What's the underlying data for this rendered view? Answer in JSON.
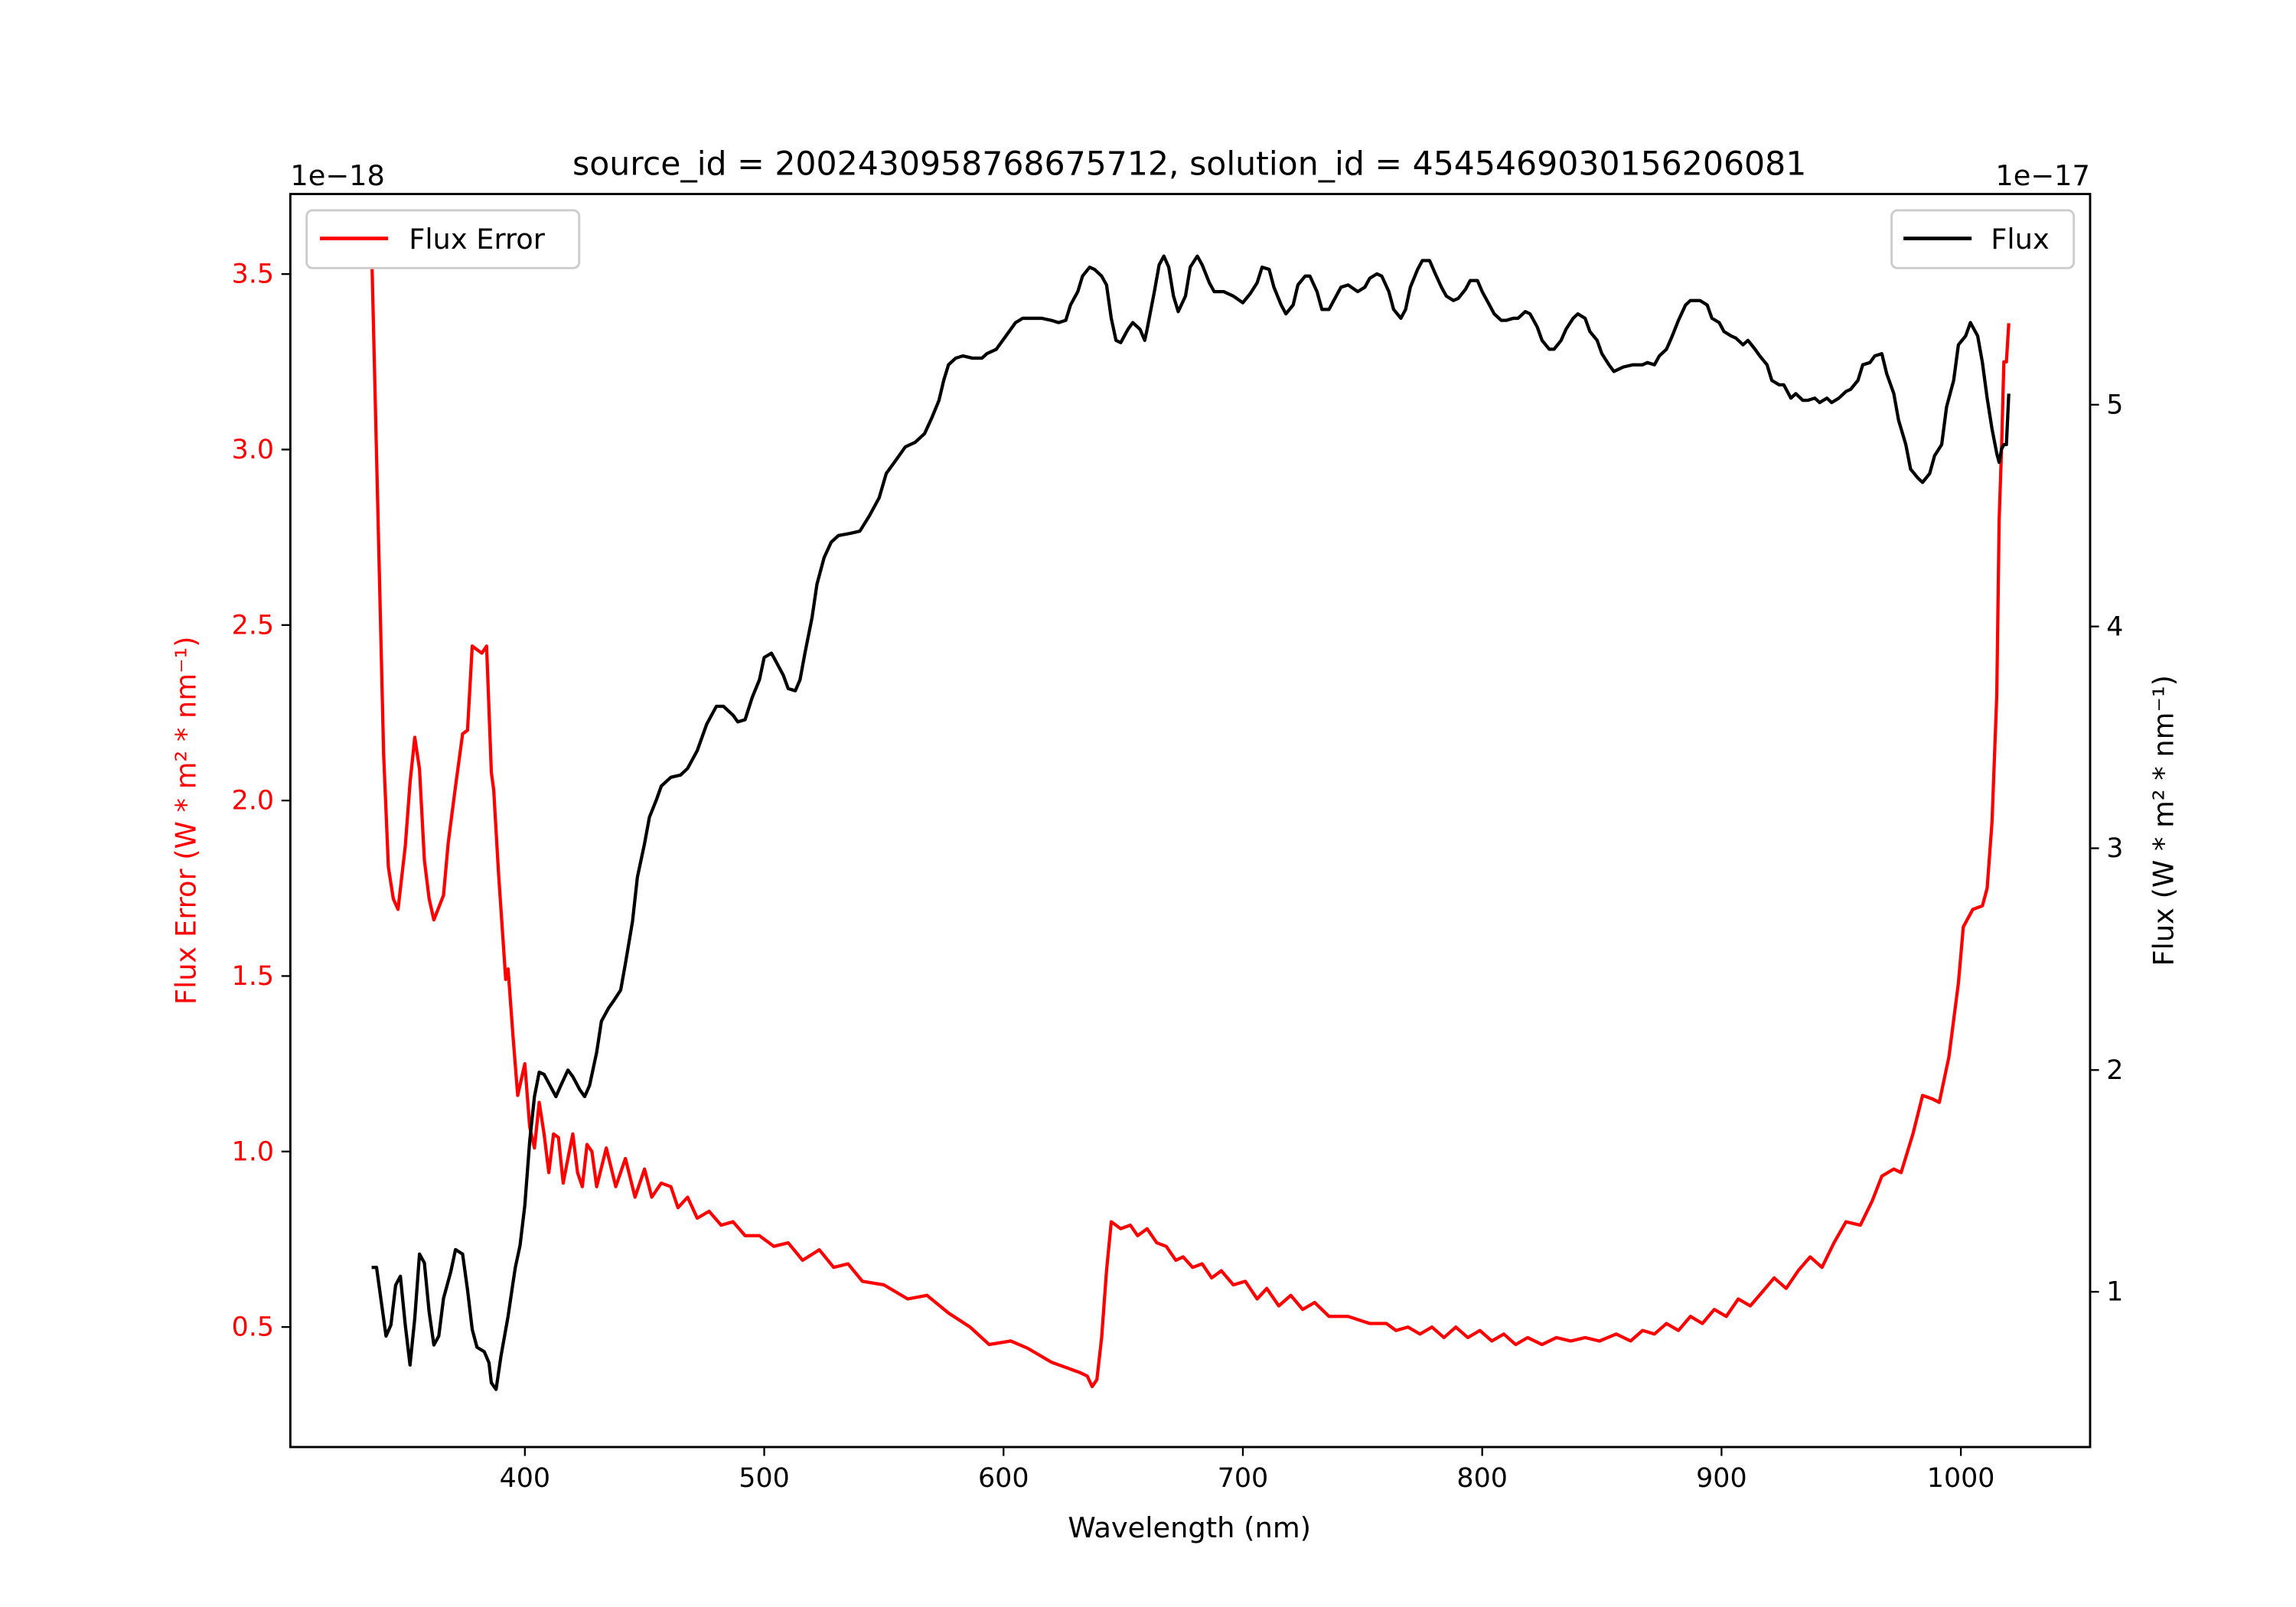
{
  "chart_data": {
    "type": "line",
    "title": "source_id = 2002430958768675712, solution_id = 4545469030156206081",
    "xlabel": "Wavelength (nm)",
    "ylabel_left": "Flux Error (W * m² * nm⁻¹)",
    "ylabel_right": "Flux (W * m² * nm⁻¹)",
    "left_offset_text": "1e−18",
    "right_offset_text": "1e−17",
    "xlim": [
      302,
      1054
    ],
    "ylim_left": [
      0.158,
      3.728
    ],
    "ylim_right": [
      0.3,
      5.95
    ],
    "xticks": [
      400,
      500,
      600,
      700,
      800,
      900,
      1000
    ],
    "xtick_labels": [
      "400",
      "500",
      "600",
      "700",
      "800",
      "900",
      "1000"
    ],
    "yticks_left": [
      0.5,
      1.0,
      1.5,
      2.0,
      2.5,
      3.0,
      3.5
    ],
    "ytick_labels_left": [
      "0.5",
      "1.0",
      "1.5",
      "2.0",
      "2.5",
      "3.0",
      "3.5"
    ],
    "yticks_right": [
      1,
      2,
      3,
      4,
      5
    ],
    "ytick_labels_right": [
      "1",
      "2",
      "3",
      "4",
      "5"
    ],
    "grid": false,
    "series": [
      {
        "name": "Flux Error",
        "axis": "left",
        "color": "#ff0000",
        "legend": "top-left",
        "x": [
          336,
          339,
          341,
          343,
          345,
          347,
          350,
          352,
          354,
          356,
          358,
          360,
          362,
          366,
          368,
          371,
          374,
          376,
          378,
          380,
          382,
          384,
          386,
          387,
          389,
          392,
          393,
          395,
          397,
          400,
          402,
          404,
          406,
          408,
          410,
          412,
          414,
          416,
          418,
          420,
          422,
          424,
          426,
          428,
          430,
          434,
          438,
          442,
          446,
          450,
          453,
          457,
          461,
          464,
          468,
          472,
          477,
          482,
          487,
          492,
          498,
          504,
          510,
          516,
          523,
          529,
          535,
          541,
          550,
          560,
          568,
          577,
          586,
          594,
          603,
          610,
          620,
          632,
          635,
          637,
          639,
          641,
          643,
          645,
          649,
          653,
          656,
          660,
          664,
          668,
          672,
          675,
          679,
          683,
          687,
          691,
          696,
          701,
          706,
          710,
          715,
          720,
          725,
          730,
          736,
          744,
          753,
          760,
          764,
          769,
          774,
          779,
          784,
          789,
          794,
          799,
          804,
          809,
          814,
          819,
          825,
          831,
          837,
          843,
          849,
          856,
          862,
          867,
          872,
          877,
          882,
          887,
          892,
          897,
          902,
          907,
          912,
          917,
          922,
          927,
          932,
          937,
          942,
          947,
          952,
          958,
          963,
          967,
          972,
          975,
          980,
          984,
          988,
          991,
          995,
          999,
          1001,
          1005,
          1009,
          1011,
          1013,
          1015,
          1016,
          1017,
          1018,
          1019,
          1020
        ],
        "y": [
          3.57,
          2.7,
          2.13,
          1.81,
          1.72,
          1.69,
          1.87,
          2.05,
          2.18,
          2.09,
          1.83,
          1.72,
          1.66,
          1.73,
          1.88,
          2.04,
          2.19,
          2.2,
          2.44,
          2.43,
          2.42,
          2.44,
          2.08,
          2.03,
          1.79,
          1.49,
          1.52,
          1.33,
          1.16,
          1.25,
          1.07,
          1.01,
          1.14,
          1.05,
          0.94,
          1.05,
          1.04,
          0.91,
          0.98,
          1.05,
          0.94,
          0.9,
          1.02,
          1.0,
          0.9,
          1.01,
          0.9,
          0.98,
          0.87,
          0.95,
          0.87,
          0.91,
          0.9,
          0.84,
          0.87,
          0.81,
          0.83,
          0.79,
          0.8,
          0.76,
          0.76,
          0.73,
          0.74,
          0.69,
          0.72,
          0.67,
          0.68,
          0.63,
          0.62,
          0.58,
          0.59,
          0.54,
          0.5,
          0.45,
          0.46,
          0.44,
          0.4,
          0.37,
          0.36,
          0.33,
          0.35,
          0.47,
          0.66,
          0.8,
          0.78,
          0.79,
          0.76,
          0.78,
          0.74,
          0.73,
          0.69,
          0.7,
          0.67,
          0.68,
          0.64,
          0.66,
          0.62,
          0.63,
          0.58,
          0.61,
          0.56,
          0.59,
          0.55,
          0.57,
          0.53,
          0.53,
          0.51,
          0.51,
          0.49,
          0.5,
          0.48,
          0.5,
          0.47,
          0.5,
          0.47,
          0.49,
          0.46,
          0.48,
          0.45,
          0.47,
          0.45,
          0.47,
          0.46,
          0.47,
          0.46,
          0.48,
          0.46,
          0.49,
          0.48,
          0.51,
          0.49,
          0.53,
          0.51,
          0.55,
          0.53,
          0.58,
          0.56,
          0.6,
          0.64,
          0.61,
          0.66,
          0.7,
          0.67,
          0.74,
          0.8,
          0.79,
          0.86,
          0.93,
          0.95,
          0.94,
          1.05,
          1.16,
          1.15,
          1.14,
          1.27,
          1.48,
          1.64,
          1.69,
          1.7,
          1.75,
          1.94,
          2.3,
          2.8,
          3.0,
          3.25,
          3.25,
          3.36
        ]
      },
      {
        "name": "Flux",
        "axis": "right",
        "color": "#000000",
        "legend": "top-right",
        "x": [
          336,
          338,
          342,
          344,
          346,
          348,
          350,
          352,
          354,
          356,
          358,
          360,
          362,
          364,
          366,
          369,
          371,
          374,
          376,
          378,
          380,
          383,
          385,
          386,
          388,
          390,
          393,
          395,
          396,
          398,
          400,
          402,
          404,
          406,
          408,
          411,
          413,
          415,
          418,
          420,
          423,
          425,
          427,
          430,
          432,
          435,
          437,
          440,
          442,
          445,
          447,
          450,
          452,
          455,
          457,
          461,
          465,
          468,
          472,
          476,
          480,
          483,
          487,
          489,
          492,
          495,
          498,
          500,
          503,
          505,
          508,
          510,
          513,
          515,
          517,
          520,
          522,
          525,
          528,
          531,
          536,
          540,
          544,
          548,
          551,
          555,
          559,
          563,
          567,
          570,
          573,
          575,
          577,
          580,
          583,
          587,
          591,
          593,
          597,
          601,
          605,
          608,
          612,
          616,
          620,
          623,
          626,
          628,
          631,
          633,
          636,
          638,
          641,
          643,
          645,
          647,
          649,
          652,
          654,
          657,
          659,
          660,
          663,
          665,
          667,
          669,
          671,
          673,
          676,
          678,
          681,
          683,
          686,
          688,
          692,
          696,
          700,
          703,
          706,
          708,
          711,
          713,
          716,
          718,
          721,
          723,
          726,
          728,
          731,
          733,
          736,
          738,
          741,
          744,
          748,
          751,
          753,
          756,
          758,
          761,
          763,
          766,
          768,
          770,
          773,
          775,
          778,
          780,
          783,
          785,
          788,
          790,
          793,
          795,
          798,
          800,
          803,
          805,
          808,
          810,
          813,
          815,
          818,
          820,
          823,
          825,
          828,
          830,
          833,
          835,
          838,
          840,
          843,
          845,
          848,
          850,
          853,
          855,
          859,
          863,
          867,
          869,
          872,
          874,
          877,
          879,
          882,
          885,
          887,
          891,
          894,
          896,
          899,
          901,
          904,
          906,
          909,
          911,
          914,
          916,
          919,
          921,
          924,
          926,
          929,
          931,
          934,
          936,
          939,
          941,
          944,
          946,
          949,
          952,
          954,
          957,
          959,
          962,
          964,
          967,
          969,
          972,
          974,
          977,
          979,
          982,
          984,
          987,
          989,
          992,
          994,
          997,
          999,
          1002,
          1004,
          1007,
          1009,
          1011,
          1013,
          1015,
          1016,
          1017,
          1018,
          1019,
          1020
        ],
        "y": [
          1.11,
          1.11,
          0.8,
          0.85,
          1.03,
          1.07,
          0.85,
          0.67,
          0.88,
          1.17,
          1.13,
          0.91,
          0.76,
          0.8,
          0.97,
          1.09,
          1.19,
          1.17,
          1.01,
          0.83,
          0.75,
          0.73,
          0.68,
          0.59,
          0.56,
          0.71,
          0.89,
          1.04,
          1.11,
          1.21,
          1.39,
          1.68,
          1.88,
          1.99,
          1.98,
          1.92,
          1.88,
          1.93,
          2.0,
          1.97,
          1.91,
          1.88,
          1.93,
          2.08,
          2.22,
          2.28,
          2.31,
          2.36,
          2.48,
          2.67,
          2.87,
          3.02,
          3.14,
          3.22,
          3.28,
          3.32,
          3.33,
          3.36,
          3.44,
          3.56,
          3.64,
          3.64,
          3.6,
          3.57,
          3.58,
          3.68,
          3.76,
          3.86,
          3.88,
          3.84,
          3.78,
          3.72,
          3.71,
          3.76,
          3.88,
          4.04,
          4.19,
          4.31,
          4.38,
          4.41,
          4.42,
          4.43,
          4.5,
          4.58,
          4.69,
          4.75,
          4.81,
          4.83,
          4.87,
          4.94,
          5.02,
          5.11,
          5.18,
          5.21,
          5.22,
          5.21,
          5.21,
          5.23,
          5.25,
          5.31,
          5.37,
          5.39,
          5.39,
          5.39,
          5.38,
          5.37,
          5.38,
          5.45,
          5.51,
          5.58,
          5.62,
          5.61,
          5.58,
          5.54,
          5.39,
          5.29,
          5.28,
          5.34,
          5.37,
          5.34,
          5.29,
          5.34,
          5.51,
          5.63,
          5.67,
          5.62,
          5.49,
          5.42,
          5.49,
          5.62,
          5.67,
          5.63,
          5.55,
          5.51,
          5.51,
          5.49,
          5.46,
          5.5,
          5.55,
          5.62,
          5.61,
          5.53,
          5.45,
          5.41,
          5.45,
          5.54,
          5.58,
          5.58,
          5.51,
          5.43,
          5.43,
          5.47,
          5.53,
          5.54,
          5.51,
          5.53,
          5.57,
          5.59,
          5.58,
          5.51,
          5.43,
          5.39,
          5.43,
          5.53,
          5.61,
          5.65,
          5.65,
          5.6,
          5.53,
          5.49,
          5.47,
          5.48,
          5.52,
          5.56,
          5.56,
          5.51,
          5.45,
          5.41,
          5.38,
          5.38,
          5.39,
          5.39,
          5.42,
          5.41,
          5.35,
          5.29,
          5.25,
          5.25,
          5.29,
          5.34,
          5.39,
          5.41,
          5.39,
          5.33,
          5.29,
          5.23,
          5.18,
          5.15,
          5.17,
          5.18,
          5.18,
          5.19,
          5.18,
          5.22,
          5.25,
          5.3,
          5.38,
          5.45,
          5.47,
          5.47,
          5.45,
          5.39,
          5.37,
          5.33,
          5.31,
          5.3,
          5.27,
          5.29,
          5.25,
          5.22,
          5.18,
          5.11,
          5.09,
          5.09,
          5.03,
          5.05,
          5.02,
          5.02,
          5.03,
          5.01,
          5.03,
          5.01,
          5.03,
          5.06,
          5.07,
          5.11,
          5.18,
          5.19,
          5.22,
          5.23,
          5.14,
          5.05,
          4.93,
          4.82,
          4.71,
          4.67,
          4.65,
          4.69,
          4.77,
          4.82,
          4.99,
          5.11,
          5.27,
          5.31,
          5.37,
          5.31,
          5.19,
          5.03,
          4.89,
          4.78,
          4.74,
          4.8,
          4.82,
          4.82,
          5.05
        ]
      }
    ]
  }
}
